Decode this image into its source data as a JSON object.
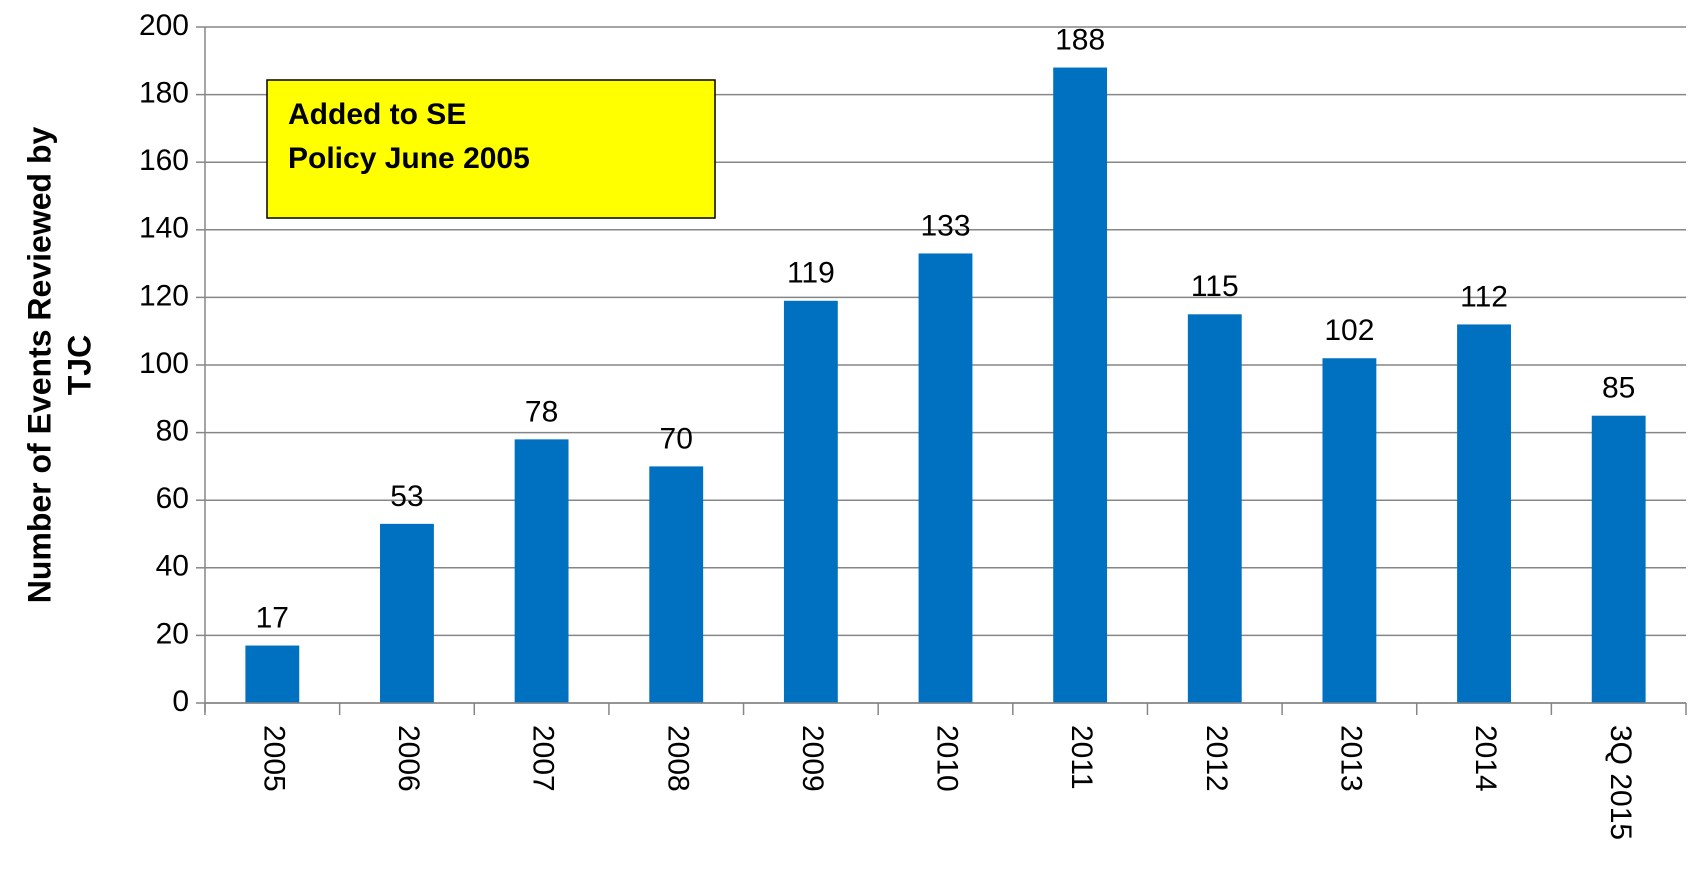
{
  "chart_data": {
    "type": "bar",
    "ylabel": [
      "Number of Events Reviewed by",
      "TJC"
    ],
    "annotation": [
      "Added to SE",
      "Policy June 2005"
    ],
    "categories": [
      "2005",
      "2006",
      "2007",
      "2008",
      "2009",
      "2010",
      "2011",
      "2012",
      "2013",
      "2014",
      "3Q 2015"
    ],
    "values": [
      17,
      53,
      78,
      70,
      119,
      133,
      188,
      115,
      102,
      112,
      85
    ],
    "color": "#0070c0",
    "ylim": [
      0,
      200
    ],
    "yticks": [
      0,
      20,
      40,
      60,
      80,
      100,
      120,
      140,
      160,
      180,
      200
    ],
    "grid": true
  }
}
